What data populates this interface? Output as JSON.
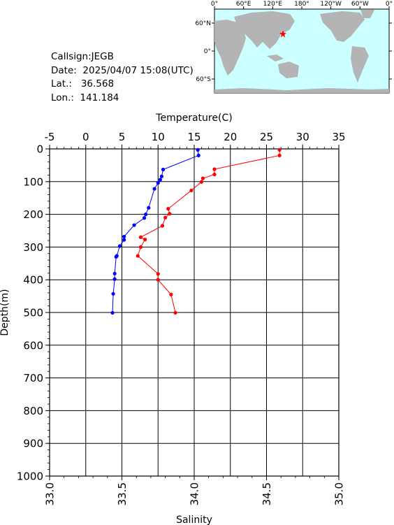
{
  "info": {
    "callsign": "Callsign:JEGB",
    "date_label": "Date:",
    "date_value": "2025/04/07 15:08(UTC)",
    "lat_label": "Lat.:",
    "lat_value": "36.568",
    "lon_label": "Lon.:",
    "lon_value": "141.184"
  },
  "map": {
    "lon_labels": [
      "0°",
      "60°E",
      "120°E",
      "180°",
      "120°W",
      "60°W",
      "0°"
    ],
    "lat_labels": [
      "60°N",
      "0°",
      "60°S"
    ],
    "station": {
      "lat": 36.568,
      "lon": 141.184
    },
    "ocean_color": "#ccffff",
    "land_color": "#b4b4b4",
    "marker_color": "#ff0000"
  },
  "chart_data": {
    "type": "line",
    "top_axis": {
      "label": "Temperature(C)",
      "range": [
        -5,
        35
      ],
      "ticks": [
        "-5",
        "0",
        "5",
        "10",
        "15",
        "20",
        "25",
        "30",
        "35"
      ]
    },
    "bottom_axis": {
      "label": "Salinity",
      "range": [
        33.0,
        35.0
      ],
      "ticks": [
        "33.0",
        "33.5",
        "34.0",
        "34.5",
        "35.0"
      ]
    },
    "y_axis": {
      "label": "Depth(m)",
      "range": [
        0,
        1000
      ],
      "inverted": true,
      "ticks": [
        "0",
        "100",
        "200",
        "300",
        "400",
        "500",
        "600",
        "700",
        "800",
        "900",
        "1000"
      ]
    },
    "grid": true,
    "series": [
      {
        "color": "#0000ff",
        "axis": "temperature",
        "points": [
          {
            "x": 15.5,
            "y": 3
          },
          {
            "x": 15.6,
            "y": 20
          },
          {
            "x": 10.7,
            "y": 63
          },
          {
            "x": 10.5,
            "y": 84
          },
          {
            "x": 10.3,
            "y": 94
          },
          {
            "x": 10.0,
            "y": 104
          },
          {
            "x": 9.5,
            "y": 122
          },
          {
            "x": 8.7,
            "y": 180
          },
          {
            "x": 8.3,
            "y": 200
          },
          {
            "x": 8.1,
            "y": 211
          },
          {
            "x": 6.7,
            "y": 233
          },
          {
            "x": 5.3,
            "y": 268
          },
          {
            "x": 5.3,
            "y": 278
          },
          {
            "x": 4.7,
            "y": 297
          },
          {
            "x": 4.3,
            "y": 327
          },
          {
            "x": 4.2,
            "y": 330
          },
          {
            "x": 4.0,
            "y": 381
          },
          {
            "x": 4.0,
            "y": 398
          },
          {
            "x": 3.8,
            "y": 443
          },
          {
            "x": 3.7,
            "y": 501
          }
        ]
      },
      {
        "color": "#ff0000",
        "axis": "salinity",
        "points": [
          {
            "x": 34.59,
            "y": 3
          },
          {
            "x": 34.59,
            "y": 20
          },
          {
            "x": 34.14,
            "y": 62
          },
          {
            "x": 34.14,
            "y": 78
          },
          {
            "x": 34.06,
            "y": 90
          },
          {
            "x": 34.05,
            "y": 101
          },
          {
            "x": 33.98,
            "y": 127
          },
          {
            "x": 33.82,
            "y": 183
          },
          {
            "x": 33.83,
            "y": 198
          },
          {
            "x": 33.8,
            "y": 210
          },
          {
            "x": 33.78,
            "y": 235
          },
          {
            "x": 33.63,
            "y": 270
          },
          {
            "x": 33.66,
            "y": 277
          },
          {
            "x": 33.63,
            "y": 300
          },
          {
            "x": 33.61,
            "y": 327
          },
          {
            "x": 33.75,
            "y": 382
          },
          {
            "x": 33.75,
            "y": 400
          },
          {
            "x": 33.84,
            "y": 445
          },
          {
            "x": 33.87,
            "y": 501
          }
        ]
      }
    ]
  }
}
